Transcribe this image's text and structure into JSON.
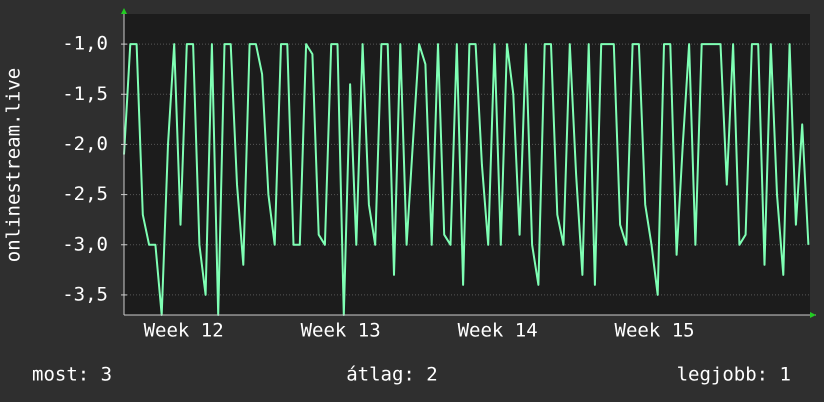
{
  "chart_data": {
    "type": "line",
    "y_label": "onlinestream.live",
    "color": "#7fffb4",
    "xlim": [
      12.12,
      16.49
    ],
    "xticks": [
      {
        "value": 12.5,
        "label": "Week 12"
      },
      {
        "value": 13.5,
        "label": "Week 13"
      },
      {
        "value": 14.5,
        "label": "Week 14"
      },
      {
        "value": 15.5,
        "label": "Week 15"
      }
    ],
    "ylim": [
      -3.7,
      -0.7
    ],
    "yticks": [
      {
        "value": -1,
        "label": "-1,0"
      },
      {
        "value": -1.5,
        "label": "-1,5"
      },
      {
        "value": -2,
        "label": "-2,0"
      },
      {
        "value": -2.5,
        "label": "-2,5"
      },
      {
        "value": -3,
        "label": "-3,0"
      },
      {
        "value": -3.5,
        "label": "-3,5"
      }
    ],
    "grid": true,
    "x": [
      12.12,
      12.16,
      12.2,
      12.24,
      12.28,
      12.32,
      12.36,
      12.4,
      12.44,
      12.48,
      12.52,
      12.56,
      12.6,
      12.64,
      12.68,
      12.72,
      12.76,
      12.8,
      12.84,
      12.88,
      12.92,
      12.96,
      13,
      13.04,
      13.08,
      13.12,
      13.16,
      13.2,
      13.24,
      13.28,
      13.32,
      13.36,
      13.4,
      13.44,
      13.48,
      13.52,
      13.56,
      13.6,
      13.64,
      13.68,
      13.72,
      13.76,
      13.8,
      13.84,
      13.88,
      13.92,
      13.96,
      14,
      14.04,
      14.08,
      14.12,
      14.16,
      14.2,
      14.24,
      14.28,
      14.32,
      14.36,
      14.4,
      14.44,
      14.48,
      14.52,
      14.56,
      14.6,
      14.64,
      14.68,
      14.72,
      14.76,
      14.8,
      14.84,
      14.88,
      14.92,
      14.96,
      15,
      15.04,
      15.08,
      15.12,
      15.16,
      15.2,
      15.24,
      15.28,
      15.32,
      15.36,
      15.4,
      15.44,
      15.48,
      15.52,
      15.56,
      15.6,
      15.64,
      15.68,
      15.72,
      15.76,
      15.8,
      15.84,
      15.88,
      15.92,
      15.96,
      16,
      16.04,
      16.08,
      16.12,
      16.16,
      16.2,
      16.24,
      16.28,
      16.32,
      16.36,
      16.4,
      16.44,
      16.48
    ],
    "series": [
      {
        "name": "onlinestream.live",
        "color": "#7fffb4",
        "values": [
          -2.1,
          -1,
          -1,
          -2.7,
          -3,
          -3,
          -3.7,
          -2,
          -1,
          -2.8,
          -1,
          -1,
          -3,
          -3.5,
          -1,
          -3.7,
          -1,
          -1,
          -2.4,
          -3.2,
          -1,
          -1,
          -1.3,
          -2.5,
          -3,
          -1,
          -1,
          -3,
          -3,
          -1,
          -1.1,
          -2.9,
          -3,
          -1,
          -1,
          -3.7,
          -1.4,
          -3,
          -1,
          -2.6,
          -3,
          -1,
          -1,
          -3.3,
          -1,
          -3,
          -2,
          -1,
          -1.2,
          -3,
          -1,
          -2.9,
          -3,
          -1,
          -3.4,
          -1,
          -1,
          -2.2,
          -3,
          -1,
          -3,
          -1,
          -1.5,
          -2.9,
          -1,
          -3,
          -3.4,
          -1,
          -1,
          -2.7,
          -3,
          -1,
          -2.3,
          -3.3,
          -1,
          -3.4,
          -1,
          -1,
          -1,
          -2.8,
          -3,
          -1,
          -1,
          -2.6,
          -3,
          -3.5,
          -1,
          -1,
          -3.1,
          -2,
          -1,
          -3,
          -1,
          -1,
          -1,
          -1,
          -2.4,
          -1,
          -3,
          -2.9,
          -1,
          -1,
          -3.2,
          -1,
          -2.5,
          -3.3,
          -1,
          -2.8,
          -1.8,
          -3
        ]
      }
    ],
    "footer": [
      "most: 3",
      "átlag: 2",
      "legjobb: 1"
    ]
  }
}
